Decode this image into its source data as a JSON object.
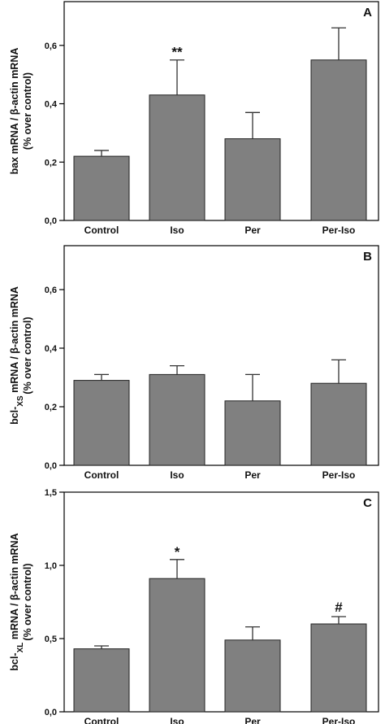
{
  "chart_data": [
    {
      "type": "bar",
      "panel": "A",
      "categories": [
        "Control",
        "Iso",
        "Per",
        "Per-Iso"
      ],
      "values": [
        0.22,
        0.43,
        0.28,
        0.55
      ],
      "errors": [
        0.02,
        0.12,
        0.09,
        0.11
      ],
      "annotations": [
        "",
        "**",
        "",
        ""
      ],
      "ylabel_lines": [
        "bax mRNA / β-actin mRNA",
        "(% over control)"
      ],
      "ylim": [
        0,
        0.75
      ],
      "yticks": [
        0,
        0.2,
        0.4,
        0.6
      ],
      "ytick_labels": [
        "0,0",
        "0,2",
        "0,4",
        "0,6"
      ],
      "bar_color": "#808080"
    },
    {
      "type": "bar",
      "panel": "B",
      "categories": [
        "Control",
        "Iso",
        "Per",
        "Per-Iso"
      ],
      "values": [
        0.29,
        0.31,
        0.22,
        0.28
      ],
      "errors": [
        0.02,
        0.03,
        0.09,
        0.08
      ],
      "annotations": [
        "",
        "",
        "",
        ""
      ],
      "ylabel_lines": [
        "bcl-XS mRNA / β-actin mRNA",
        "(% over control)"
      ],
      "ylim": [
        0,
        0.75
      ],
      "yticks": [
        0,
        0.2,
        0.4,
        0.6
      ],
      "ytick_labels": [
        "0,0",
        "0,2",
        "0,4",
        "0,6"
      ],
      "bar_color": "#808080"
    },
    {
      "type": "bar",
      "panel": "C",
      "categories": [
        "Control",
        "Iso",
        "Per",
        "Per-Iso"
      ],
      "values": [
        0.43,
        0.91,
        0.49,
        0.6
      ],
      "errors": [
        0.02,
        0.13,
        0.09,
        0.05
      ],
      "annotations": [
        "",
        "*",
        "",
        "#"
      ],
      "ylabel_lines": [
        "bcl-XL mRNA / β-actin mRNA",
        "(% over control)"
      ],
      "ylim": [
        0,
        1.5
      ],
      "yticks": [
        0,
        0.5,
        1.0,
        1.5
      ],
      "ytick_labels": [
        "0,0",
        "0,5",
        "1,0",
        "1,5"
      ],
      "bar_color": "#808080"
    }
  ]
}
